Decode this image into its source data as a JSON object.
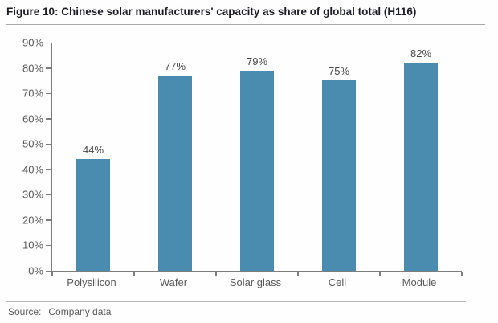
{
  "title": "Figure 10: Chinese solar manufacturers' capacity as share of global total (H116)",
  "source": {
    "label": "Source:",
    "value": "Company data"
  },
  "chart_data": {
    "type": "bar",
    "title": "Chinese solar manufacturers' capacity as share of global total (H116)",
    "categories": [
      "Polysilicon",
      "Wafer",
      "Solar glass",
      "Cell",
      "Module"
    ],
    "values": [
      44,
      77,
      79,
      75,
      82
    ],
    "value_labels": [
      "44%",
      "77%",
      "79%",
      "75%",
      "82%"
    ],
    "xlabel": "",
    "ylabel": "",
    "ylim": [
      0,
      90
    ],
    "ytick_step": 10,
    "ytick_suffix": "%",
    "grid": false,
    "legend": "none",
    "bar_color": "#4A8CB0"
  },
  "colors": {
    "bar": "#4A8CB0",
    "axis": "#7D7D7D",
    "axis_text": "#595959",
    "value_text": "#474747",
    "title_text": "#1C1C26",
    "divider": "#A9A9A9"
  }
}
